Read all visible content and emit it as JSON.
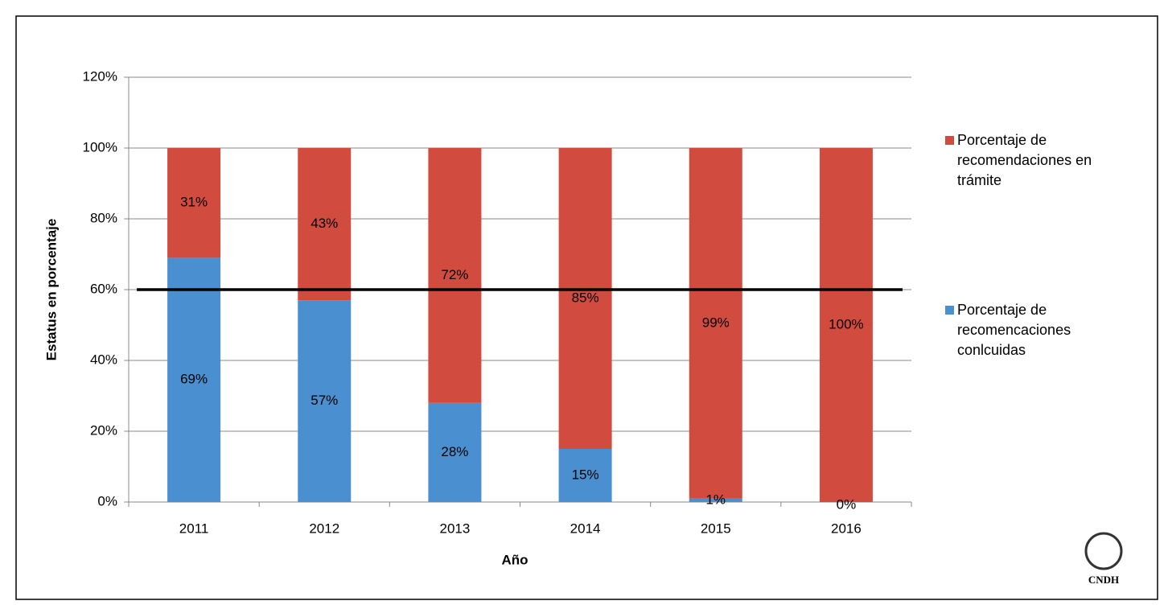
{
  "chart_data": {
    "type": "stacked_bar",
    "x_label": "Año",
    "y_label": "Estatus en porcentaje",
    "categories": [
      "2011",
      "2012",
      "2013",
      "2014",
      "2015",
      "2016"
    ],
    "series": [
      {
        "name": "Porcentaje de recomencaciones conlcuidas",
        "color": "#4a8fd0",
        "values": [
          69,
          57,
          28,
          15,
          1,
          0
        ],
        "value_labels": [
          "69%",
          "57%",
          "28%",
          "15%",
          "1%",
          "0%"
        ]
      },
      {
        "name": "Porcentaje de recomendaciones en trámite",
        "color": "#d24b3f",
        "values": [
          31,
          43,
          72,
          85,
          99,
          100
        ],
        "value_labels": [
          "31%",
          "43%",
          "72%",
          "85%",
          "99%",
          "100%"
        ]
      }
    ],
    "ylim": [
      0,
      120
    ],
    "yticks": [
      {
        "value": 0,
        "label": "0%"
      },
      {
        "value": 20,
        "label": "20%"
      },
      {
        "value": 40,
        "label": "40%"
      },
      {
        "value": 60,
        "label": "60%"
      },
      {
        "value": 80,
        "label": "80%"
      },
      {
        "value": 100,
        "label": "100%"
      },
      {
        "value": 120,
        "label": "120%"
      }
    ],
    "grid": true,
    "reference_line": 60,
    "logo_text": "CNDH"
  }
}
